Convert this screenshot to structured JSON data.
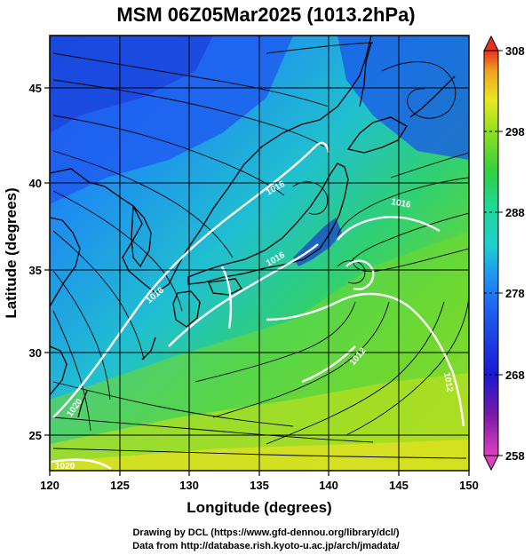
{
  "title": "MSM 06Z05Mar2025 (1013.2hPa)",
  "x_axis": {
    "label": "Longitude (degrees)",
    "ticks": [
      "120",
      "125",
      "130",
      "135",
      "140",
      "145",
      "150"
    ]
  },
  "y_axis": {
    "label": "Latitude  (degrees)",
    "ticks": [
      "25",
      "30",
      "35",
      "40",
      "45"
    ]
  },
  "colorbar": {
    "ticks": [
      "258",
      "268",
      "278",
      "288",
      "298",
      "308"
    ],
    "colors": [
      "#e040c0",
      "#7a1aa8",
      "#1a1ad0",
      "#1e5af0",
      "#1e9bf0",
      "#20d0d0",
      "#20d890",
      "#30d040",
      "#90e020",
      "#e8e820",
      "#f0a020",
      "#e83020"
    ]
  },
  "contour_labels": [
    "1020",
    "1016",
    "1016",
    "1016",
    "1016",
    "1012",
    "1012",
    "1020"
  ],
  "credits": {
    "line1": "Drawing by DCL (https://www.gfd-dennou.org/library/dcl/)",
    "line2": "Data from http://database.rish.kyoto-u.ac.jp/arch/jmadata/"
  }
}
